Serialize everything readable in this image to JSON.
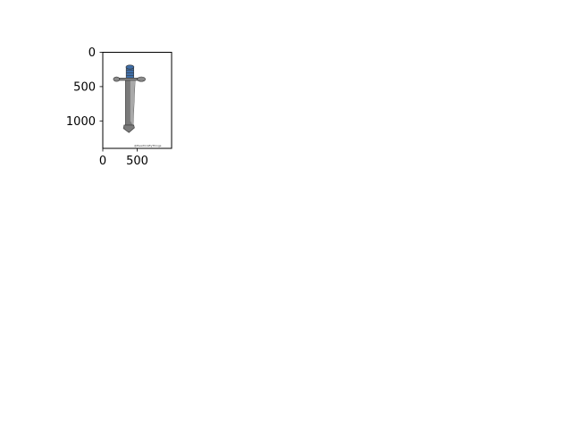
{
  "chart_data": {
    "type": "image",
    "title": "",
    "xlabel": "",
    "ylabel": "",
    "xlim": [
      0,
      1000
    ],
    "ylim": [
      1400,
      0
    ],
    "y_inverted": true,
    "x_ticks": [
      {
        "value": 0,
        "label": "0"
      },
      {
        "value": 500,
        "label": "500"
      }
    ],
    "y_ticks": [
      {
        "value": 0,
        "label": "0"
      },
      {
        "value": 500,
        "label": "500"
      },
      {
        "value": 1000,
        "label": "1000"
      }
    ],
    "grid": false,
    "image_content": {
      "subject": "sword-illustration",
      "watermark_text": "@HeartCraftyThings",
      "colors": {
        "blade_light": "#a9a9a9",
        "blade_dark": "#7a7a7a",
        "grip": "#3f6ea8",
        "guard": "#8a8a8a",
        "outline": "#333333"
      }
    }
  }
}
